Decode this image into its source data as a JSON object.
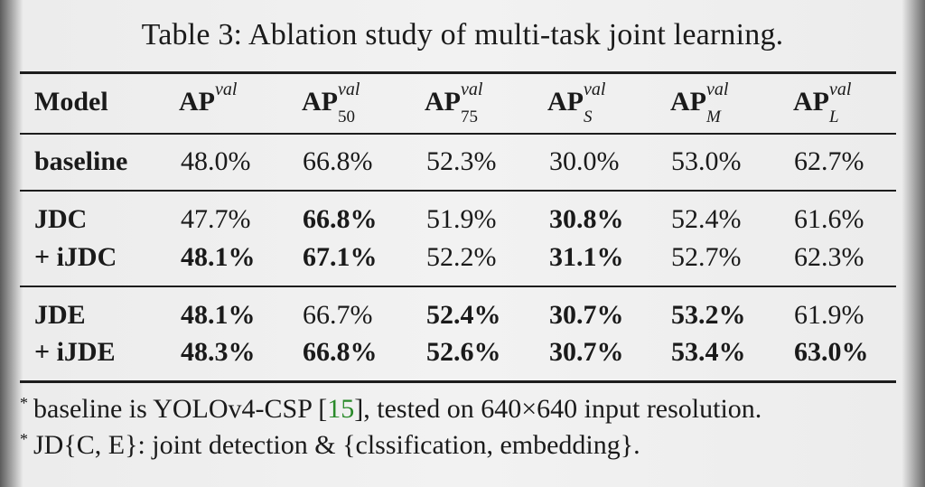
{
  "caption": "Table 3: Ablation study of multi-task joint learning.",
  "header": {
    "model": "Model",
    "ap_base": "AP",
    "val": "val",
    "sub50": "50",
    "sub75": "75",
    "subS": "S",
    "subM": "M",
    "subL": "L"
  },
  "rows": [
    {
      "model": "baseline",
      "values": [
        "48.0%",
        "66.8%",
        "52.3%",
        "30.0%",
        "53.0%",
        "62.7%"
      ]
    },
    {
      "model": "JDC",
      "values": [
        "47.7%",
        "66.8%",
        "51.9%",
        "30.8%",
        "52.4%",
        "61.6%"
      ]
    },
    {
      "model": "+ iJDC",
      "values": [
        "48.1%",
        "67.1%",
        "52.2%",
        "31.1%",
        "52.7%",
        "62.3%"
      ]
    },
    {
      "model": "JDE",
      "values": [
        "48.1%",
        "66.7%",
        "52.4%",
        "30.7%",
        "53.2%",
        "61.9%"
      ]
    },
    {
      "model": "+ iJDE",
      "values": [
        "48.3%",
        "66.8%",
        "52.6%",
        "30.7%",
        "53.4%",
        "63.0%"
      ]
    }
  ],
  "notes": {
    "star": "*",
    "note1_pre": "baseline is YOLOv4-CSP [",
    "note1_cite": "15",
    "note1_post": "], tested on 640×640 input resolution.",
    "note2": "JD{C, E}: joint detection & {clssification, embedding}."
  }
}
